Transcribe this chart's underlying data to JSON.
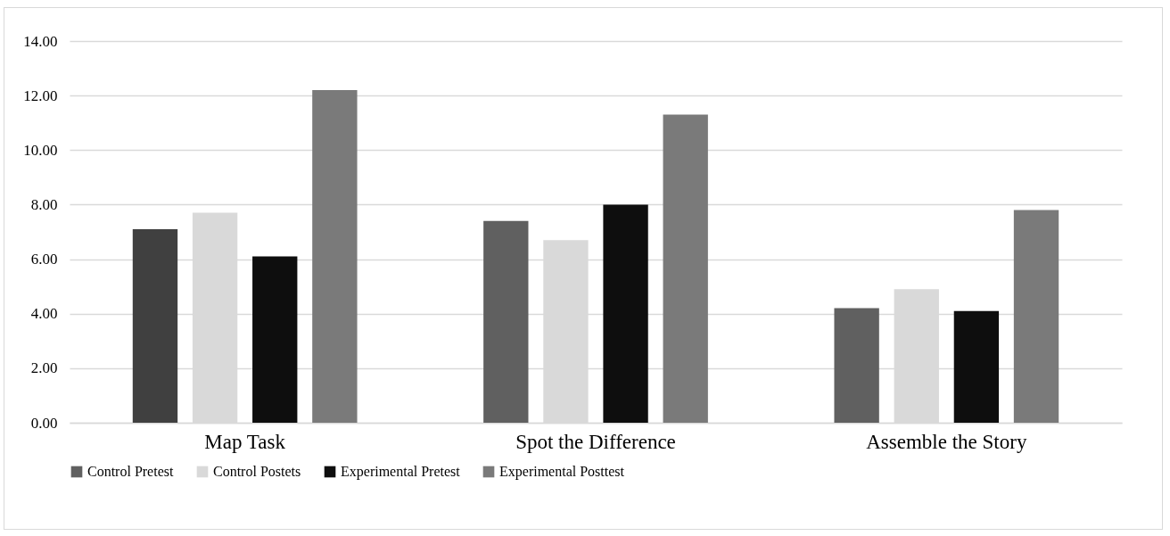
{
  "chart_data": {
    "type": "bar",
    "categories": [
      "Map Task",
      "Spot the Difference",
      "Assemble the Story"
    ],
    "series": [
      {
        "name": "Control Pretest",
        "color": "#606060",
        "colors": [
          "#404040",
          "#606060",
          "#606060"
        ],
        "values": [
          7.1,
          7.4,
          4.2
        ]
      },
      {
        "name": "Control Postets",
        "color": "#d9d9d9",
        "values": [
          7.7,
          6.7,
          4.9
        ]
      },
      {
        "name": "Experimental Pretest",
        "color": "#0e0e0e",
        "values": [
          6.1,
          8.0,
          4.1
        ]
      },
      {
        "name": "Experimental Posttest",
        "color": "#7a7a7a",
        "values": [
          12.2,
          11.3,
          7.8
        ]
      }
    ],
    "ylim": [
      0,
      14
    ],
    "yticks": [
      {
        "value": 0,
        "label": "0.00"
      },
      {
        "value": 2,
        "label": "2.00"
      },
      {
        "value": 4,
        "label": "4.00"
      },
      {
        "value": 6,
        "label": "6.00"
      },
      {
        "value": 8,
        "label": "8.00"
      },
      {
        "value": 10,
        "label": "10.00"
      },
      {
        "value": 12,
        "label": "12.00"
      },
      {
        "value": 14,
        "label": "14.00"
      }
    ],
    "grid": "y",
    "legend": "bottom"
  }
}
